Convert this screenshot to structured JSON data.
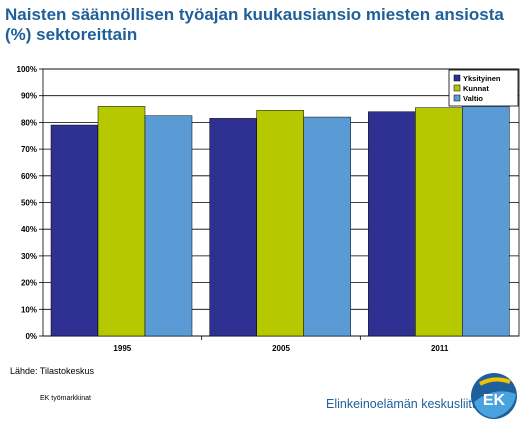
{
  "title": "Naisten säännöllisen työajan kuukausiansio miesten ansiosta (%) sektoreittain",
  "source": "Lähde: Tilastokeskus",
  "footer_left": "EK työmarkkinat",
  "org_name": "Elinkeinoelämän keskusliitto",
  "logo_text": "EK",
  "chart_data": {
    "type": "bar",
    "categories": [
      "1995",
      "2005",
      "2011"
    ],
    "series": [
      {
        "name": "Yksityinen",
        "values": [
          79,
          81.5,
          84
        ],
        "color": "#2e3192"
      },
      {
        "name": "Kunnat",
        "values": [
          86,
          84.5,
          85.5
        ],
        "color": "#b5c800"
      },
      {
        "name": "Valtio",
        "values": [
          82.5,
          82,
          86
        ],
        "color": "#5b9bd5"
      }
    ],
    "ylim": [
      0,
      100
    ],
    "yticks": [
      "0%",
      "10%",
      "20%",
      "30%",
      "40%",
      "50%",
      "60%",
      "70%",
      "80%",
      "90%",
      "100%"
    ],
    "grid": true,
    "legend": "top-right"
  }
}
